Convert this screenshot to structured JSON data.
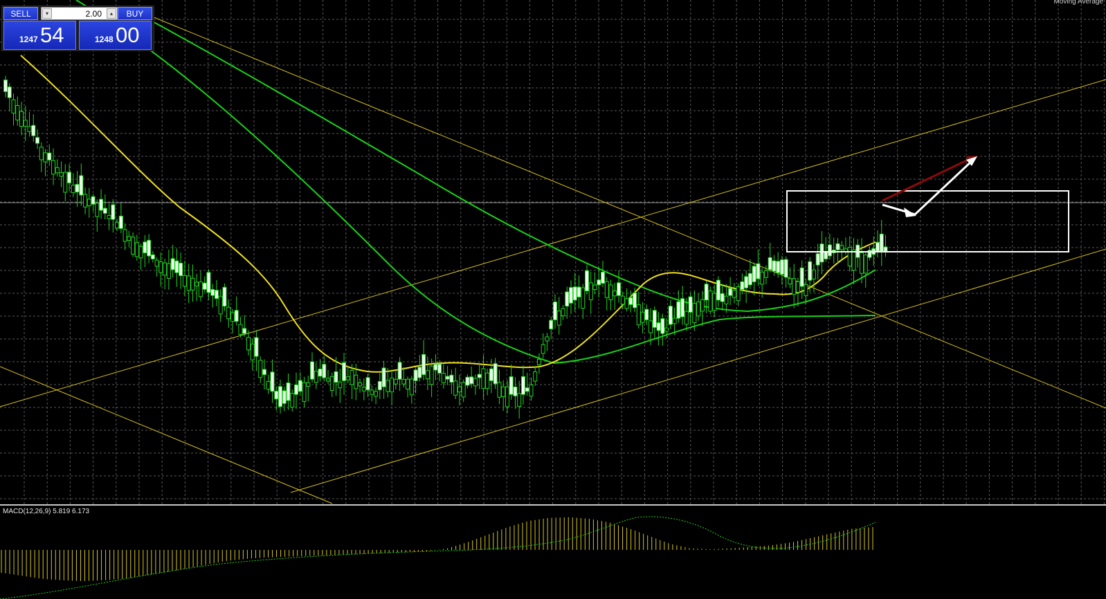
{
  "corner_label": "Moving Average",
  "trade_panel": {
    "sell_label": "SELL",
    "buy_label": "BUY",
    "volume": "2.00",
    "sell_small": "1247",
    "sell_big": "54",
    "buy_small": "1248",
    "buy_big": "00"
  },
  "indicator": {
    "macd_label": "MACD(12,26,9) 5.819 6.173"
  },
  "colors": {
    "background": "#000000",
    "candle": "#1fd81f",
    "ma_fast": "#f0e020",
    "ma_slow": "#19d219",
    "trendline": "#d9c21a",
    "arrow_white": "#ffffff",
    "arrow_red": "#8b0a0a"
  },
  "chart_data": {
    "type": "candlestick",
    "price_axis_visible": false,
    "candles_close_trend": [
      0.86,
      0.82,
      0.78,
      0.73,
      0.7,
      0.67,
      0.64,
      0.62,
      0.6,
      0.58,
      0.55,
      0.52,
      0.5,
      0.48,
      0.47,
      0.45,
      0.44,
      0.42,
      0.4,
      0.37,
      0.33,
      0.28,
      0.22,
      0.17,
      0.19,
      0.21,
      0.24,
      0.23,
      0.22,
      0.24,
      0.21,
      0.2,
      0.22,
      0.23,
      0.22,
      0.24,
      0.25,
      0.23,
      0.21,
      0.22,
      0.24,
      0.22,
      0.2,
      0.19,
      0.21,
      0.3,
      0.36,
      0.39,
      0.41,
      0.43,
      0.44,
      0.42,
      0.4,
      0.38,
      0.35,
      0.33,
      0.36,
      0.37,
      0.39,
      0.41,
      0.4,
      0.42,
      0.43,
      0.45,
      0.47,
      0.46,
      0.44,
      0.43,
      0.48,
      0.5,
      0.52,
      0.5,
      0.49,
      0.51
    ],
    "macd_histogram_trend": [
      -0.3,
      -0.34,
      -0.38,
      -0.4,
      -0.41,
      -0.4,
      -0.38,
      -0.34,
      -0.3,
      -0.25,
      -0.2,
      -0.15,
      -0.12,
      -0.1,
      -0.09,
      -0.08,
      -0.07,
      -0.06,
      -0.05,
      -0.04,
      -0.03,
      -0.02,
      0.02,
      0.1,
      0.2,
      0.3,
      0.38,
      0.42,
      0.43,
      0.41,
      0.36,
      0.28,
      0.18,
      0.08,
      0.02,
      0.01,
      0.02,
      0.04,
      0.06,
      0.1,
      0.16,
      0.22,
      0.28,
      0.3
    ]
  }
}
